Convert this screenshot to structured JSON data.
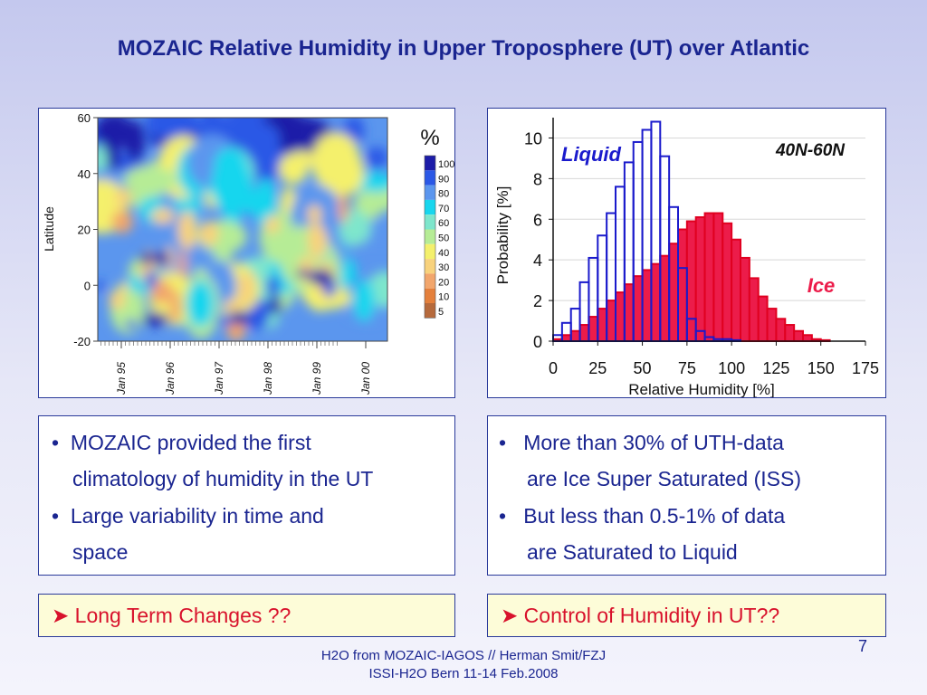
{
  "slide": {
    "title": "MOZAIC Relative Humidity in Upper Troposphere (UT) over Atlantic",
    "page_number": "7",
    "footer": [
      "H2O from MOZAIC-IAGOS // Herman Smit/FZJ",
      "ISSI-H2O Bern 11-14 Feb.2008"
    ]
  },
  "left_box": {
    "bullets": [
      {
        "line1": "MOZAIC provided the first",
        "line2": "climatology of humidity in the UT"
      },
      {
        "line1": "Large variability in time and",
        "line2": "space"
      }
    ]
  },
  "right_box": {
    "bullets": [
      {
        "line1": "More than 30% of UTH-data",
        "line2": "are Ice Super Saturated (ISS)"
      },
      {
        "line1": "But less than 0.5-1% of data",
        "line2": "are Saturated to Liquid"
      }
    ]
  },
  "questions": {
    "left": "Long Term Changes ??",
    "right": "Control of Humidity in UT??"
  },
  "chart_data": [
    {
      "type": "heatmap",
      "ylabel": "Latitude",
      "ylim": [
        -20,
        60
      ],
      "y_ticks": [
        "60",
        "40",
        "20",
        "0",
        "-20"
      ],
      "x_ticks": [
        "Jan 95",
        "Jan 96",
        "Jan 97",
        "Jan 98",
        "Jan 99",
        "Jan 00"
      ],
      "colorbar_title": "%",
      "colorbar_labels": [
        "100",
        "90",
        "80",
        "70",
        "60",
        "50",
        "40",
        "30",
        "20",
        "10",
        "5"
      ],
      "colorbar_colors": [
        "#1c1ca8",
        "#2b58e6",
        "#5b96ee",
        "#18d6ee",
        "#7ee6cc",
        "#b6ec96",
        "#f4f06c",
        "#f8d27c",
        "#f2a66c",
        "#e4803c",
        "#b66a3c"
      ]
    },
    {
      "type": "bar",
      "annotation": "40N-60N",
      "xlabel": "Relative Humidity [%]",
      "ylabel": "Probability [%]",
      "xlim": [
        0,
        175
      ],
      "ylim": [
        0,
        11
      ],
      "x_ticks": [
        "0",
        "25",
        "50",
        "75",
        "100",
        "125",
        "150",
        "175"
      ],
      "y_ticks": [
        "0",
        "2",
        "4",
        "6",
        "8",
        "10"
      ],
      "bin_width": 5,
      "series": [
        {
          "name": "Liquid",
          "color": "#1a1acc",
          "x": [
            0,
            5,
            10,
            15,
            20,
            25,
            30,
            35,
            40,
            45,
            50,
            55,
            60,
            65,
            70,
            75,
            80,
            85,
            90,
            95,
            100
          ],
          "values": [
            0.3,
            0.9,
            1.6,
            2.9,
            4.1,
            5.2,
            6.3,
            7.6,
            8.8,
            9.8,
            10.4,
            10.8,
            9.1,
            6.6,
            3.6,
            1.1,
            0.5,
            0.2,
            0.1,
            0.1,
            0.05
          ]
        },
        {
          "name": "Ice",
          "color": "#ec1c4a",
          "x": [
            0,
            5,
            10,
            15,
            20,
            25,
            30,
            35,
            40,
            45,
            50,
            55,
            60,
            65,
            70,
            75,
            80,
            85,
            90,
            95,
            100,
            105,
            110,
            115,
            120,
            125,
            130,
            135,
            140,
            145,
            150,
            155,
            160,
            165
          ],
          "values": [
            0.1,
            0.3,
            0.5,
            0.8,
            1.2,
            1.6,
            2.0,
            2.4,
            2.8,
            3.2,
            3.5,
            3.8,
            4.2,
            4.8,
            5.5,
            5.9,
            6.1,
            6.3,
            6.3,
            5.8,
            5.0,
            4.1,
            3.1,
            2.2,
            1.6,
            1.1,
            0.8,
            0.5,
            0.3,
            0.1,
            0.05,
            0.0,
            0.0,
            0.0
          ]
        }
      ]
    }
  ]
}
